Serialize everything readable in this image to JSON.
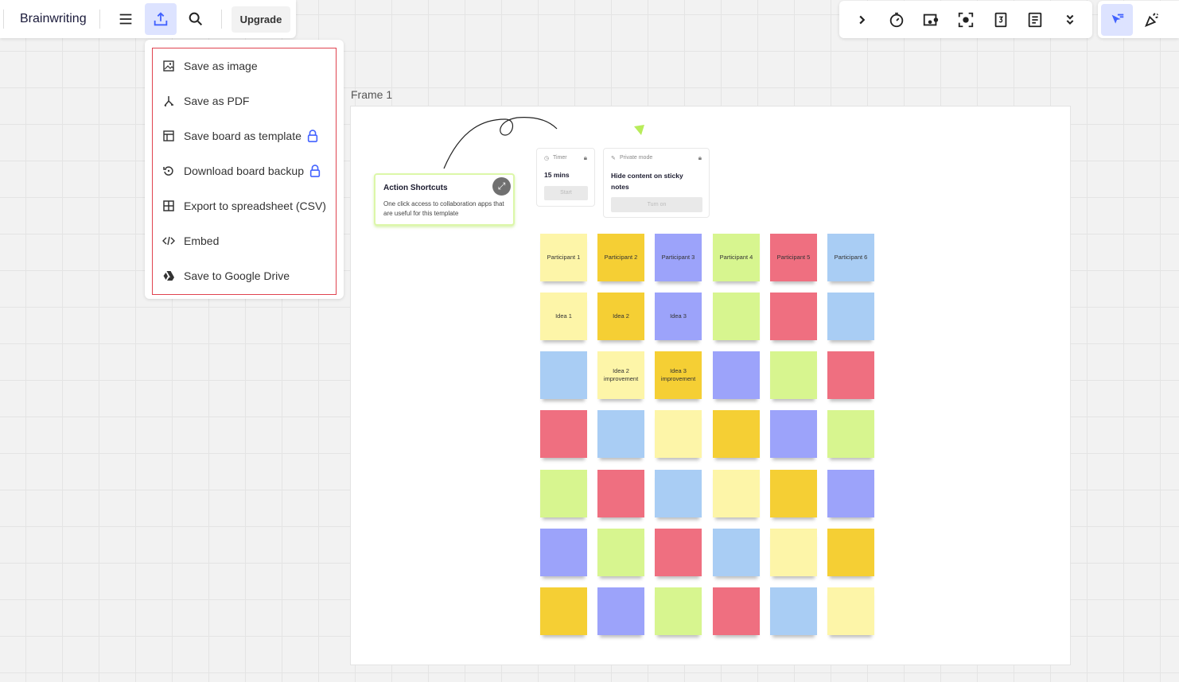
{
  "toolbar": {
    "board_title": "Brainwriting",
    "upgrade_label": "Upgrade"
  },
  "export_menu": {
    "items": [
      {
        "label": "Save as image",
        "icon": "image-icon",
        "locked": false
      },
      {
        "label": "Save as PDF",
        "icon": "pdf-icon",
        "locked": false
      },
      {
        "label": "Save board as template",
        "icon": "template-icon",
        "locked": true
      },
      {
        "label": "Download board backup",
        "icon": "backup-icon",
        "locked": true
      },
      {
        "label": "Export to spreadsheet (CSV)",
        "icon": "table-icon",
        "locked": false
      },
      {
        "label": "Embed",
        "icon": "code-icon",
        "locked": false
      },
      {
        "label": "Save to Google Drive",
        "icon": "google-drive-icon",
        "locked": false
      }
    ]
  },
  "frame": {
    "label": "Frame 1"
  },
  "action_card": {
    "title": "Action Shortcuts",
    "description": "One click access to collaboration apps that are useful for this template"
  },
  "timer_card": {
    "label": "Timer",
    "value": "15 mins",
    "button": "Start"
  },
  "private_card": {
    "label": "Private mode",
    "title": "Hide content on sticky notes",
    "button": "Turn on"
  },
  "colors": {
    "accent": "#4262ff",
    "accent_bg": "#dde3ff",
    "Y": "#fdf5a8",
    "G": "#f5cf34",
    "P": "#9ca3fa",
    "L": "#d7f58f",
    "R": "#ef6f80",
    "B": "#a9cdf4"
  },
  "stickies": [
    [
      {
        "c": "Y",
        "t": "Participant 1"
      },
      {
        "c": "G",
        "t": "Participant 2"
      },
      {
        "c": "P",
        "t": "Participant 3"
      },
      {
        "c": "L",
        "t": "Participant 4"
      },
      {
        "c": "R",
        "t": "Participant 5"
      },
      {
        "c": "B",
        "t": "Participant 6"
      }
    ],
    [
      {
        "c": "Y",
        "t": "Idea 1"
      },
      {
        "c": "G",
        "t": "Idea 2"
      },
      {
        "c": "P",
        "t": "Idea 3"
      },
      {
        "c": "L",
        "t": ""
      },
      {
        "c": "R",
        "t": ""
      },
      {
        "c": "B",
        "t": ""
      }
    ],
    [
      {
        "c": "B",
        "t": ""
      },
      {
        "c": "Y",
        "t": "Idea 2 improvement"
      },
      {
        "c": "G",
        "t": "Idea 3 improvement"
      },
      {
        "c": "P",
        "t": ""
      },
      {
        "c": "L",
        "t": ""
      },
      {
        "c": "R",
        "t": ""
      }
    ],
    [
      {
        "c": "R",
        "t": ""
      },
      {
        "c": "B",
        "t": ""
      },
      {
        "c": "Y",
        "t": ""
      },
      {
        "c": "G",
        "t": ""
      },
      {
        "c": "P",
        "t": ""
      },
      {
        "c": "L",
        "t": ""
      }
    ],
    [
      {
        "c": "L",
        "t": ""
      },
      {
        "c": "R",
        "t": ""
      },
      {
        "c": "B",
        "t": ""
      },
      {
        "c": "Y",
        "t": ""
      },
      {
        "c": "G",
        "t": ""
      },
      {
        "c": "P",
        "t": ""
      }
    ],
    [
      {
        "c": "P",
        "t": ""
      },
      {
        "c": "L",
        "t": ""
      },
      {
        "c": "R",
        "t": ""
      },
      {
        "c": "B",
        "t": ""
      },
      {
        "c": "Y",
        "t": ""
      },
      {
        "c": "G",
        "t": ""
      }
    ],
    [
      {
        "c": "G",
        "t": ""
      },
      {
        "c": "P",
        "t": ""
      },
      {
        "c": "L",
        "t": ""
      },
      {
        "c": "R",
        "t": ""
      },
      {
        "c": "B",
        "t": ""
      },
      {
        "c": "Y",
        "t": ""
      }
    ]
  ]
}
